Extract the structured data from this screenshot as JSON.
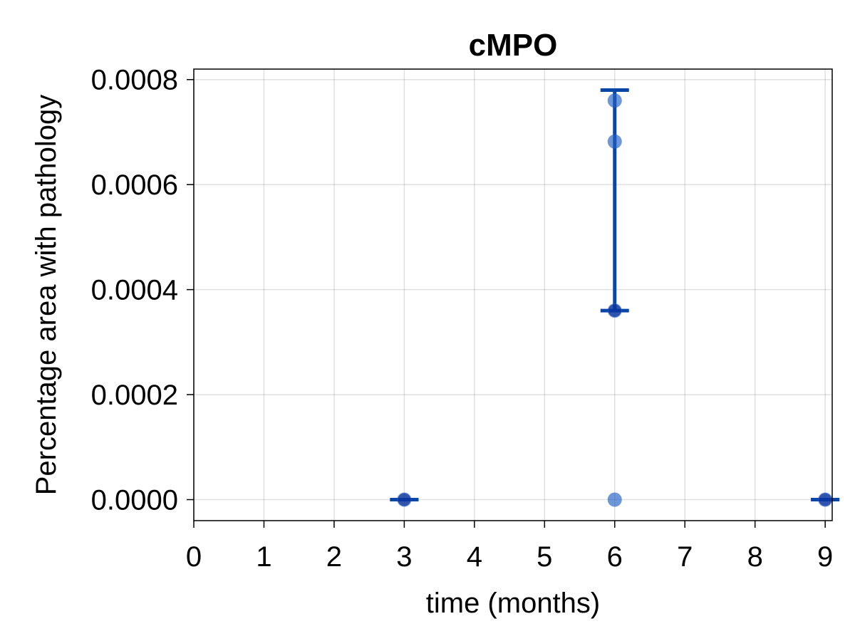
{
  "chart_data": {
    "type": "scatter",
    "title": "cMPO",
    "xlabel": "time (months)",
    "ylabel": "Percentage area with pathology",
    "xlim": [
      0,
      9.1
    ],
    "ylim": [
      -4e-05,
      0.00082
    ],
    "x_ticks": [
      0,
      1,
      2,
      3,
      4,
      5,
      6,
      7,
      8,
      9
    ],
    "x_tick_labels": [
      "0",
      "1",
      "2",
      "3",
      "4",
      "5",
      "6",
      "7",
      "8",
      "9"
    ],
    "y_ticks": [
      0,
      0.0002,
      0.0004,
      0.0006,
      0.0008
    ],
    "y_tick_labels": [
      "0.0000",
      "0.0002",
      "0.0004",
      "0.0006",
      "0.0008"
    ],
    "grid": true,
    "points": [
      {
        "x": 3,
        "y": 0
      },
      {
        "x": 6,
        "y": 0.00076
      },
      {
        "x": 6,
        "y": 0.000682
      },
      {
        "x": 6,
        "y": 0.00036
      },
      {
        "x": 6,
        "y": 0
      },
      {
        "x": 9,
        "y": 0
      }
    ],
    "summary": [
      {
        "x": 3,
        "median": 0,
        "low": 0,
        "high": 0
      },
      {
        "x": 6,
        "median": 0.00036,
        "low": 0.00036,
        "high": 0.00078
      },
      {
        "x": 9,
        "median": 0,
        "low": 0,
        "high": 0
      }
    ],
    "colors": {
      "points": "#2160c4",
      "median": "#001f8a",
      "errorbar": "#0a46a6",
      "grid": "#dddddd"
    }
  }
}
